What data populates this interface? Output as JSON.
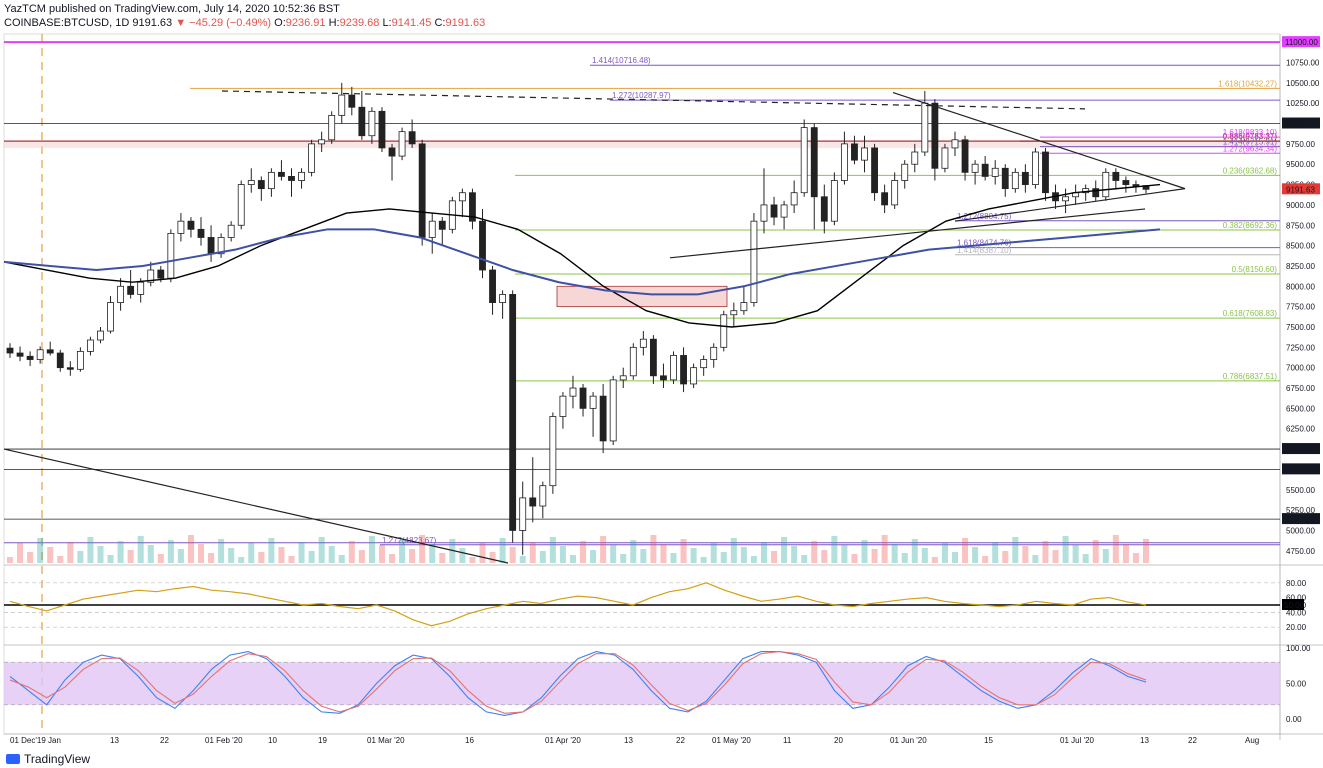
{
  "header": {
    "published": "YazTCM published on TradingView.com, July 14, 2020 10:52:36 BST",
    "symbol": "COINBASE:BTCUSD, 1D",
    "last": "9191.63",
    "change": "▼ −45.29 (−0.49%)",
    "o_label": "O:",
    "o": "9236.91",
    "h_label": "H:",
    "h": "9239.68",
    "l_label": "L:",
    "l": "9141.45",
    "c_label": "C:",
    "c": "9191.63"
  },
  "brand": "TradingView",
  "colors": {
    "up": "#26a69a",
    "down": "#ef5350",
    "ma_black": "#000000",
    "ma_blue": "#3f51a5",
    "rsi": "#d4a017",
    "stoch_k": "#3b82f6",
    "stoch_d": "#e57373",
    "stoch_band": "#e1c6f5",
    "fib_green": "#8bc34a",
    "fib_purple": "#7e57c2",
    "fib_orange": "#e3a33b",
    "magenta": "#e040fb"
  },
  "chart_data": {
    "type": "candlestick",
    "symbol": "COINBASE:BTCUSD",
    "interval": "1D",
    "price_axis": {
      "min": 4600,
      "max": 11100,
      "ticks": [
        "11000.00",
        "10750.00",
        "10500.00",
        "10250.00",
        "10000.00",
        "9750.00",
        "9500.00",
        "9250.00",
        "9000.00",
        "8750.00",
        "8500.00",
        "8250.00",
        "8000.00",
        "7750.00",
        "7500.00",
        "7250.00",
        "7000.00",
        "6750.00",
        "6500.00",
        "6250.00",
        "6000.00",
        "5750.00",
        "5500.00",
        "5250.00",
        "5000.00",
        "4750.00"
      ],
      "current_price_label": "9191.63",
      "highlighted_labels": [
        {
          "text": "11000.00",
          "value": 11000,
          "color": "#e040fb"
        },
        {
          "text": "10000.00",
          "value": 10000,
          "color": "#131722"
        },
        {
          "text": "6000.00",
          "value": 6000,
          "color": "#131722"
        },
        {
          "text": "5750.58",
          "value": 5750.58,
          "color": "#131722"
        },
        {
          "text": "5139.56",
          "value": 5139.56,
          "color": "#131722"
        }
      ]
    },
    "date_axis": [
      "01 Dec'19 Jan",
      "13",
      "22",
      "01 Feb '20",
      "10",
      "19",
      "01 Mar '20",
      "16",
      "01 Apr '20",
      "13",
      "22",
      "01 May '20",
      "11",
      "20",
      "01 Jun '20",
      "15",
      "01 Jul '20",
      "13",
      "22",
      "Aug"
    ],
    "fib_levels": [
      {
        "label": "1.414(10716.48)",
        "value": 10716.48,
        "color": "#7e57c2"
      },
      {
        "label": "1.618(10432.27)",
        "value": 10432.27,
        "color": "#e3a33b"
      },
      {
        "label": "1.272(10287.97)",
        "value": 10287.97,
        "color": "#7e57c2"
      },
      {
        "label": "0.886(9783.37)",
        "value": 9783.37,
        "color": "#8d1d1d"
      },
      {
        "label": "1.618(9833.10)",
        "value": 9833.1,
        "color": "#e040fb"
      },
      {
        "label": "1.414(9715.91)",
        "value": 9715.91,
        "color": "#7e57c2"
      },
      {
        "label": "1.272(9634.34)",
        "value": 9634.34,
        "color": "#e040fb"
      },
      {
        "label": "0.236(9362.68)",
        "value": 9362.68,
        "color": "#8bc34a"
      },
      {
        "label": "1.272(8804.75)",
        "value": 8804.75,
        "color": "#7e57c2"
      },
      {
        "label": "0.382(8692.36)",
        "value": 8692.36,
        "color": "#8bc34a"
      },
      {
        "label": "1.618(8474.76)",
        "value": 8474.76,
        "color": "#7e57c2"
      },
      {
        "label": "1.414(8387.10)",
        "value": 8387.1,
        "color": "#b7b7b7"
      },
      {
        "label": "0.5(8150.60)",
        "value": 8150.6,
        "color": "#8bc34a"
      },
      {
        "label": "0.618(7608.83)",
        "value": 7608.83,
        "color": "#8bc34a"
      },
      {
        "label": "0.786(6837.51)",
        "value": 6837.51,
        "color": "#8bc34a"
      },
      {
        "label": "1.272(4823.67)",
        "value": 4823.67,
        "color": "#7e57c2"
      }
    ],
    "candles": [
      [
        7240,
        7300,
        7120,
        7180
      ],
      [
        7180,
        7260,
        7080,
        7140
      ],
      [
        7140,
        7200,
        7020,
        7100
      ],
      [
        7100,
        7260,
        7050,
        7220
      ],
      [
        7220,
        7320,
        7150,
        7180
      ],
      [
        7180,
        7220,
        6950,
        7000
      ],
      [
        7000,
        7080,
        6900,
        6980
      ],
      [
        6980,
        7250,
        6950,
        7200
      ],
      [
        7200,
        7380,
        7150,
        7340
      ],
      [
        7340,
        7500,
        7300,
        7450
      ],
      [
        7450,
        7880,
        7420,
        7800
      ],
      [
        7800,
        8100,
        7700,
        8000
      ],
      [
        8000,
        8200,
        7850,
        7900
      ],
      [
        7900,
        8100,
        7800,
        8050
      ],
      [
        8050,
        8300,
        8000,
        8200
      ],
      [
        8200,
        8250,
        8050,
        8100
      ],
      [
        8100,
        8700,
        8050,
        8650
      ],
      [
        8650,
        8900,
        8550,
        8800
      ],
      [
        8800,
        8850,
        8600,
        8700
      ],
      [
        8700,
        8850,
        8500,
        8600
      ],
      [
        8600,
        8750,
        8300,
        8400
      ],
      [
        8400,
        8650,
        8350,
        8600
      ],
      [
        8600,
        8800,
        8550,
        8750
      ],
      [
        8750,
        9300,
        8700,
        9250
      ],
      [
        9250,
        9450,
        9150,
        9300
      ],
      [
        9300,
        9350,
        9050,
        9200
      ],
      [
        9200,
        9450,
        9100,
        9400
      ],
      [
        9400,
        9550,
        9300,
        9350
      ],
      [
        9350,
        9450,
        9100,
        9300
      ],
      [
        9300,
        9450,
        9200,
        9400
      ],
      [
        9400,
        9800,
        9350,
        9750
      ],
      [
        9750,
        9900,
        9650,
        9800
      ],
      [
        9800,
        10150,
        9750,
        10100
      ],
      [
        10100,
        10500,
        10000,
        10350
      ],
      [
        10350,
        10450,
        10100,
        10200
      ],
      [
        10200,
        10400,
        9800,
        9850
      ],
      [
        9850,
        10200,
        9750,
        10150
      ],
      [
        10150,
        10200,
        9650,
        9700
      ],
      [
        9700,
        9750,
        9300,
        9600
      ],
      [
        9600,
        9950,
        9550,
        9900
      ],
      [
        9900,
        10050,
        9700,
        9750
      ],
      [
        9750,
        9800,
        8500,
        8600
      ],
      [
        8600,
        8900,
        8400,
        8800
      ],
      [
        8800,
        8850,
        8500,
        8700
      ],
      [
        8700,
        9100,
        8650,
        9050
      ],
      [
        9050,
        9200,
        8850,
        9150
      ],
      [
        9150,
        9200,
        8700,
        8800
      ],
      [
        8800,
        8950,
        8100,
        8200
      ],
      [
        8200,
        8250,
        7650,
        7800
      ],
      [
        7800,
        7950,
        7600,
        7900
      ],
      [
        7900,
        7950,
        4850,
        5000
      ],
      [
        5000,
        5600,
        4700,
        5400
      ],
      [
        5400,
        5900,
        5100,
        5300
      ],
      [
        5300,
        5600,
        5150,
        5550
      ],
      [
        5550,
        6450,
        5450,
        6400
      ],
      [
        6400,
        6700,
        6250,
        6650
      ],
      [
        6650,
        6900,
        6500,
        6750
      ],
      [
        6750,
        6800,
        6400,
        6500
      ],
      [
        6500,
        6700,
        6150,
        6650
      ],
      [
        6650,
        6800,
        5950,
        6100
      ],
      [
        6100,
        6900,
        6050,
        6850
      ],
      [
        6850,
        7000,
        6750,
        6900
      ],
      [
        6900,
        7300,
        6850,
        7250
      ],
      [
        7250,
        7450,
        7150,
        7350
      ],
      [
        7350,
        7400,
        6800,
        6900
      ],
      [
        6900,
        7050,
        6750,
        6850
      ],
      [
        6850,
        7200,
        6800,
        7150
      ],
      [
        7150,
        7250,
        6700,
        6800
      ],
      [
        6800,
        7050,
        6750,
        7000
      ],
      [
        7000,
        7150,
        6900,
        7100
      ],
      [
        7100,
        7300,
        7000,
        7250
      ],
      [
        7250,
        7700,
        7200,
        7650
      ],
      [
        7650,
        7800,
        7500,
        7700
      ],
      [
        7700,
        8000,
        7650,
        7800
      ],
      [
        7800,
        8900,
        7750,
        8800
      ],
      [
        8800,
        9450,
        8650,
        9000
      ],
      [
        9000,
        9100,
        8750,
        8850
      ],
      [
        8850,
        9050,
        8700,
        9000
      ],
      [
        9000,
        9300,
        8900,
        9150
      ],
      [
        9150,
        10050,
        9100,
        9950
      ],
      [
        9950,
        10000,
        8700,
        9100
      ],
      [
        9100,
        9250,
        8650,
        8800
      ],
      [
        8800,
        9400,
        8750,
        9300
      ],
      [
        9300,
        9900,
        9250,
        9750
      ],
      [
        9750,
        9850,
        9500,
        9550
      ],
      [
        9550,
        9850,
        9400,
        9700
      ],
      [
        9700,
        9750,
        9050,
        9150
      ],
      [
        9150,
        9250,
        8900,
        9000
      ],
      [
        9000,
        9400,
        8950,
        9300
      ],
      [
        9300,
        9550,
        9200,
        9500
      ],
      [
        9500,
        9750,
        9400,
        9650
      ],
      [
        9650,
        10400,
        9600,
        10250
      ],
      [
        10250,
        10300,
        9300,
        9450
      ],
      [
        9450,
        9750,
        9400,
        9700
      ],
      [
        9700,
        9900,
        9600,
        9800
      ],
      [
        9800,
        9850,
        9300,
        9400
      ],
      [
        9400,
        9550,
        9250,
        9500
      ],
      [
        9500,
        9600,
        9300,
        9350
      ],
      [
        9350,
        9550,
        9250,
        9450
      ],
      [
        9450,
        9500,
        9100,
        9200
      ],
      [
        9200,
        9450,
        9150,
        9400
      ],
      [
        9400,
        9500,
        9150,
        9250
      ],
      [
        9250,
        9700,
        9200,
        9650
      ],
      [
        9650,
        9700,
        9050,
        9150
      ],
      [
        9150,
        9250,
        8950,
        9050
      ],
      [
        9050,
        9200,
        8900,
        9100
      ],
      [
        9100,
        9250,
        9000,
        9150
      ],
      [
        9150,
        9250,
        9050,
        9200
      ],
      [
        9200,
        9300,
        9050,
        9100
      ],
      [
        9100,
        9450,
        9050,
        9400
      ],
      [
        9400,
        9450,
        9200,
        9300
      ],
      [
        9300,
        9350,
        9150,
        9250
      ],
      [
        9250,
        9300,
        9150,
        9230
      ],
      [
        9236.91,
        9239.68,
        9141.45,
        9191.63
      ]
    ],
    "moving_averages": [
      {
        "name": "MA short",
        "color": "#000000",
        "values": [
          8300,
          8200,
          8100,
          8050,
          8100,
          8250,
          8500,
          8700,
          8900,
          8950,
          8900,
          8850,
          8700,
          8400,
          8000,
          7700,
          7550,
          7500,
          7550,
          7700,
          8100,
          8500,
          8800,
          8950,
          9050,
          9150,
          9200,
          9250
        ]
      },
      {
        "name": "MA long",
        "color": "#3f51a5",
        "values": [
          8300,
          8250,
          8200,
          8250,
          8350,
          8450,
          8600,
          8700,
          8700,
          8600,
          8400,
          8200,
          8050,
          7950,
          7900,
          7900,
          8000,
          8150,
          8250,
          8350,
          8450,
          8500,
          8550,
          8600,
          8650,
          8700
        ]
      }
    ],
    "rsi": {
      "ticks": [
        "80.00",
        "60.00",
        "50.00",
        "40.00",
        "20.00"
      ],
      "current": "50.00",
      "values": [
        55,
        48,
        42,
        50,
        58,
        62,
        66,
        70,
        68,
        72,
        75,
        70,
        68,
        65,
        60,
        55,
        50,
        52,
        48,
        45,
        50,
        42,
        30,
        22,
        28,
        38,
        45,
        50,
        55,
        52,
        58,
        62,
        60,
        55,
        50,
        60,
        68,
        72,
        80,
        70,
        62,
        55,
        58,
        62,
        55,
        50,
        48,
        52,
        55,
        58,
        60,
        55,
        52,
        50,
        48,
        50,
        55,
        52,
        50,
        58,
        60,
        54,
        50
      ]
    },
    "stoch": {
      "ticks": [
        "100.00",
        "50.00",
        "0.00"
      ],
      "k": [
        60,
        40,
        20,
        55,
        80,
        90,
        85,
        60,
        30,
        15,
        40,
        70,
        90,
        95,
        85,
        60,
        30,
        10,
        8,
        20,
        50,
        75,
        90,
        85,
        60,
        30,
        10,
        5,
        10,
        30,
        60,
        85,
        95,
        90,
        70,
        40,
        15,
        10,
        25,
        55,
        85,
        95,
        95,
        90,
        80,
        40,
        15,
        20,
        45,
        75,
        88,
        80,
        60,
        40,
        25,
        15,
        20,
        40,
        65,
        85,
        75,
        60,
        52
      ],
      "d": [
        55,
        45,
        30,
        45,
        70,
        85,
        86,
        68,
        40,
        22,
        35,
        60,
        82,
        92,
        88,
        68,
        40,
        18,
        10,
        18,
        42,
        68,
        85,
        86,
        68,
        40,
        18,
        8,
        10,
        25,
        52,
        78,
        92,
        92,
        76,
        48,
        22,
        12,
        22,
        48,
        78,
        92,
        95,
        92,
        84,
        52,
        24,
        20,
        38,
        66,
        84,
        82,
        66,
        46,
        30,
        20,
        20,
        34,
        58,
        80,
        78,
        64,
        55
      ]
    }
  }
}
